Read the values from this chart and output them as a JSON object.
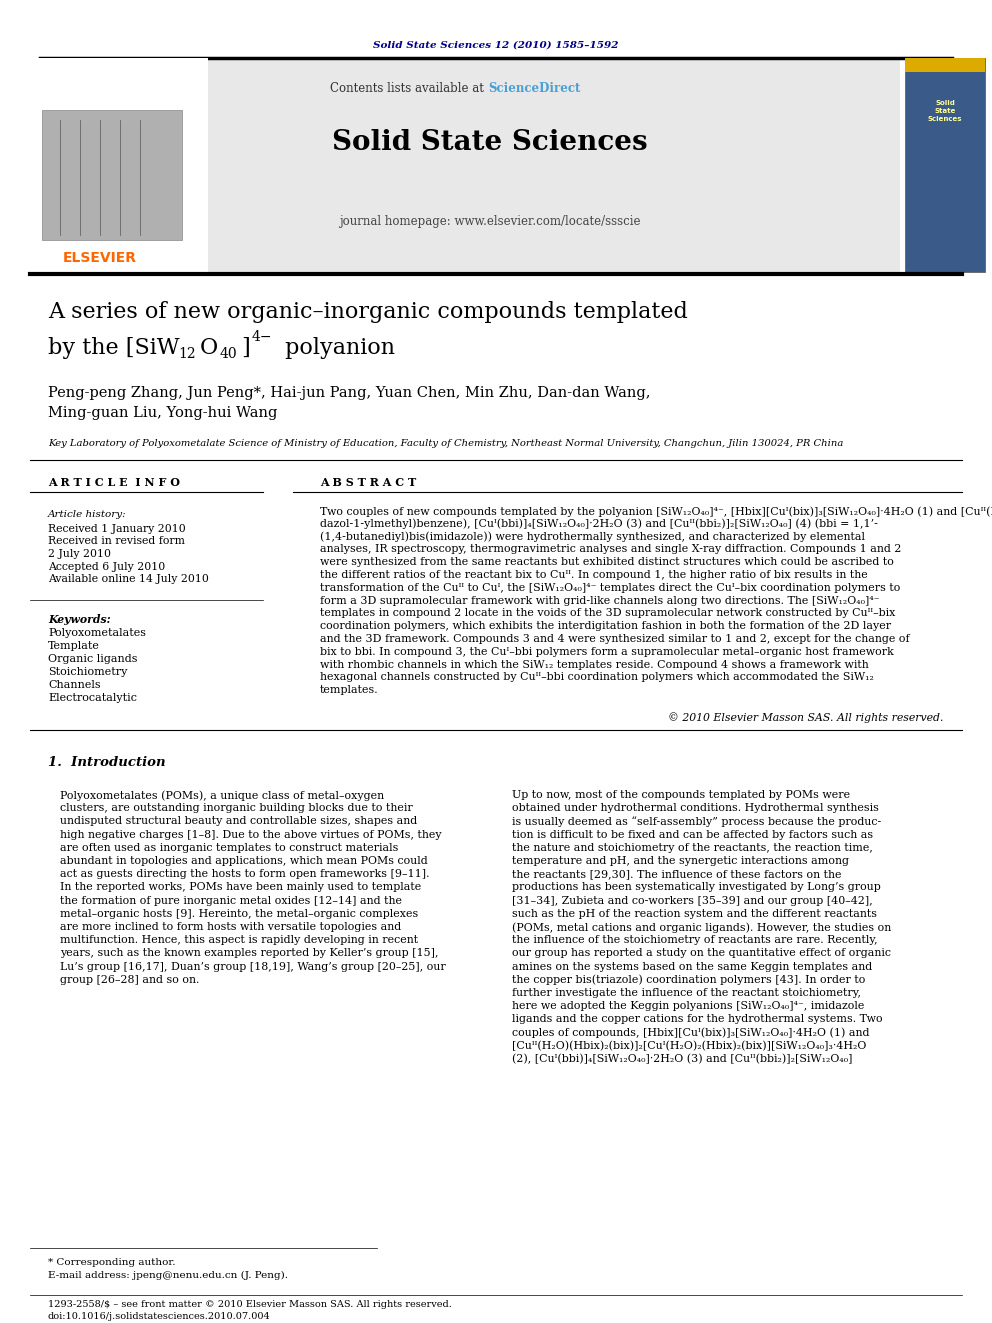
{
  "page_bg": "#ffffff",
  "journal_ref": "Solid State Sciences 12 (2010) 1585–1592",
  "journal_ref_color": "#00008B",
  "header_bg": "#e8e8e8",
  "journal_name": "Solid State Sciences",
  "contents_text": "Contents lists available at ",
  "sciencedirect_text": "ScienceDirect",
  "sciencedirect_color": "#4a9fd4",
  "homepage_text": "journal homepage: www.elsevier.com/locate/ssscie",
  "elsevier_color": "#FF6600",
  "elsevier_text": "ELSEVIER",
  "title_line1": "A series of new organic–inorganic compounds templated",
  "article_info_title": "A R T I C L E  I N F O",
  "abstract_title": "A B S T R A C T",
  "affiliation": "Key Laboratory of Polyoxometalate Science of Ministry of Education, Faculty of Chemistry, Northeast Normal University, Changchun, Jilin 130024, PR China",
  "keywords": "Polyoxometalates\nTemplate\nOrganic ligands\nStoichiometry\nChannels\nElectrocatalytic",
  "copyright": "© 2010 Elsevier Masson SAS. All rights reserved.",
  "intro_title": "1.  Introduction",
  "footer_left": "1293-2558/$ – see front matter © 2010 Elsevier Masson SAS. All rights reserved.",
  "footer_doi": "doi:10.1016/j.solidstatesciences.2010.07.004",
  "footnote_star": "* Corresponding author.",
  "footnote_email": "E-mail address: jpeng@nenu.edu.cn (J. Peng)."
}
